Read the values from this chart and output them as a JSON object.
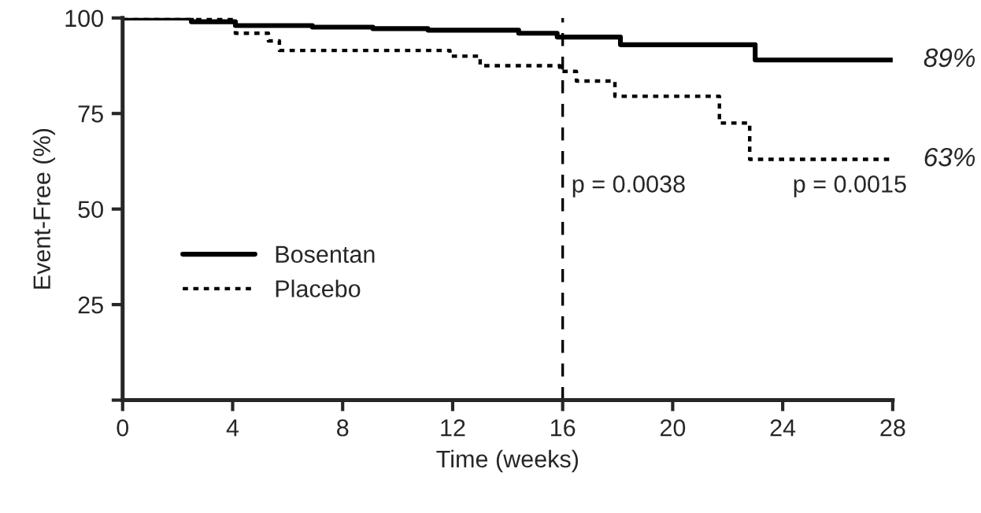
{
  "chart_data": {
    "type": "step",
    "xlabel": "Time (weeks)",
    "ylabel": "Event-Free (%)",
    "xlim": [
      0,
      28
    ],
    "ylim": [
      0,
      100
    ],
    "xticks": [
      0,
      4,
      8,
      12,
      16,
      20,
      24,
      28
    ],
    "yticks": [
      {
        "value": 0,
        "label": null
      },
      25,
      50,
      75,
      100
    ],
    "series": [
      {
        "name": "Bosentan",
        "color": "#000000",
        "line_style": "solid",
        "x": [
          0,
          2.5,
          4.1,
          6.9,
          9.1,
          11.1,
          14.4,
          15.8,
          18.1,
          23,
          28
        ],
        "values": [
          100,
          99,
          98,
          97.6,
          97.2,
          96.8,
          96,
          95,
          93,
          89,
          89
        ]
      },
      {
        "name": "Placebo",
        "color": "#000000",
        "line_style": "dotted",
        "x": [
          0,
          4.1,
          5.3,
          5.7,
          11.9,
          13,
          15.9,
          16.5,
          17.9,
          21.7,
          22.8,
          28
        ],
        "values": [
          100,
          96,
          94,
          91.5,
          90,
          87.5,
          86,
          83.5,
          79.5,
          72.5,
          63,
          63
        ]
      }
    ],
    "ref_lines": [
      {
        "axis": "x",
        "value": 16,
        "line_style": "dashed",
        "color": "#000000"
      }
    ],
    "annotations": [
      "89%",
      "63%",
      {
        "text": "p = 0.0038",
        "x": 16,
        "y": 56
      },
      "p = 0.0015"
    ],
    "legend": "bottom left",
    "grid": false
  }
}
